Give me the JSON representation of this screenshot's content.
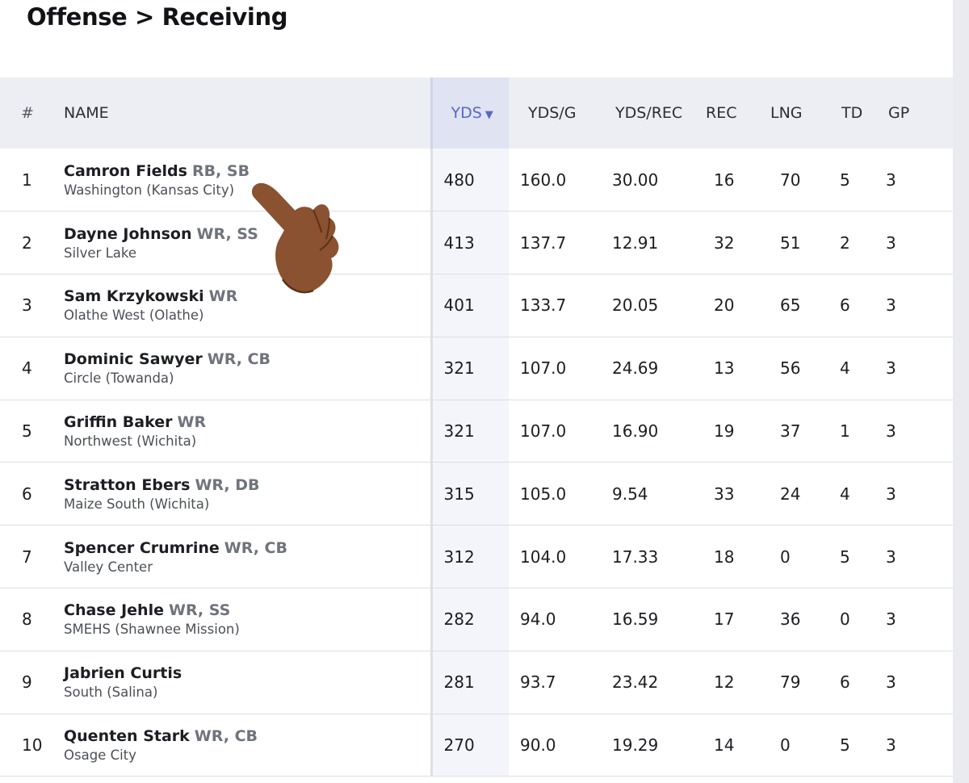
{
  "page": {
    "title": "Offense > Receiving"
  },
  "table": {
    "headers": {
      "rank": "#",
      "name": "NAME",
      "yds": "YDS",
      "yds_sort_indicator": "▼",
      "ydsg": "YDS/G",
      "ydsrec": "YDS/REC",
      "rec": "REC",
      "lng": "LNG",
      "td": "TD",
      "gp": "GP"
    },
    "rows": [
      {
        "rank": "1",
        "name": "Camron Fields",
        "positions": "RB, SB",
        "school": "Washington (Kansas City)",
        "yds": "480",
        "ydsg": "160.0",
        "ydsrec": "30.00",
        "rec": "16",
        "lng": "70",
        "td": "5",
        "gp": "3"
      },
      {
        "rank": "2",
        "name": "Dayne Johnson",
        "positions": "WR, SS",
        "school": "Silver Lake",
        "yds": "413",
        "ydsg": "137.7",
        "ydsrec": "12.91",
        "rec": "32",
        "lng": "51",
        "td": "2",
        "gp": "3"
      },
      {
        "rank": "3",
        "name": "Sam Krzykowski",
        "positions": "WR",
        "school": "Olathe West (Olathe)",
        "yds": "401",
        "ydsg": "133.7",
        "ydsrec": "20.05",
        "rec": "20",
        "lng": "65",
        "td": "6",
        "gp": "3"
      },
      {
        "rank": "4",
        "name": "Dominic Sawyer",
        "positions": "WR, CB",
        "school": "Circle (Towanda)",
        "yds": "321",
        "ydsg": "107.0",
        "ydsrec": "24.69",
        "rec": "13",
        "lng": "56",
        "td": "4",
        "gp": "3"
      },
      {
        "rank": "5",
        "name": "Griffin Baker",
        "positions": "WR",
        "school": "Northwest (Wichita)",
        "yds": "321",
        "ydsg": "107.0",
        "ydsrec": "16.90",
        "rec": "19",
        "lng": "37",
        "td": "1",
        "gp": "3"
      },
      {
        "rank": "6",
        "name": "Stratton Ebers",
        "positions": "WR, DB",
        "school": "Maize South (Wichita)",
        "yds": "315",
        "ydsg": "105.0",
        "ydsrec": "9.54",
        "rec": "33",
        "lng": "24",
        "td": "4",
        "gp": "3"
      },
      {
        "rank": "7",
        "name": "Spencer Crumrine",
        "positions": "WR, CB",
        "school": "Valley Center",
        "yds": "312",
        "ydsg": "104.0",
        "ydsrec": "17.33",
        "rec": "18",
        "lng": "0",
        "td": "5",
        "gp": "3"
      },
      {
        "rank": "8",
        "name": "Chase Jehle",
        "positions": "WR, SS",
        "school": "SMEHS (Shawnee Mission)",
        "yds": "282",
        "ydsg": "94.0",
        "ydsrec": "16.59",
        "rec": "17",
        "lng": "36",
        "td": "0",
        "gp": "3"
      },
      {
        "rank": "9",
        "name": "Jabrien Curtis",
        "positions": "",
        "school": "South (Salina)",
        "yds": "281",
        "ydsg": "93.7",
        "ydsrec": "23.42",
        "rec": "12",
        "lng": "79",
        "td": "6",
        "gp": "3"
      },
      {
        "rank": "10",
        "name": "Quenten Stark",
        "positions": "WR, CB",
        "school": "Osage City",
        "yds": "270",
        "ydsg": "90.0",
        "ydsrec": "19.29",
        "rec": "14",
        "lng": "0",
        "td": "5",
        "gp": "3"
      }
    ]
  },
  "overlay": {
    "icon": "pointing-hand-emoji-icon",
    "skin_color": "#8a5230"
  }
}
